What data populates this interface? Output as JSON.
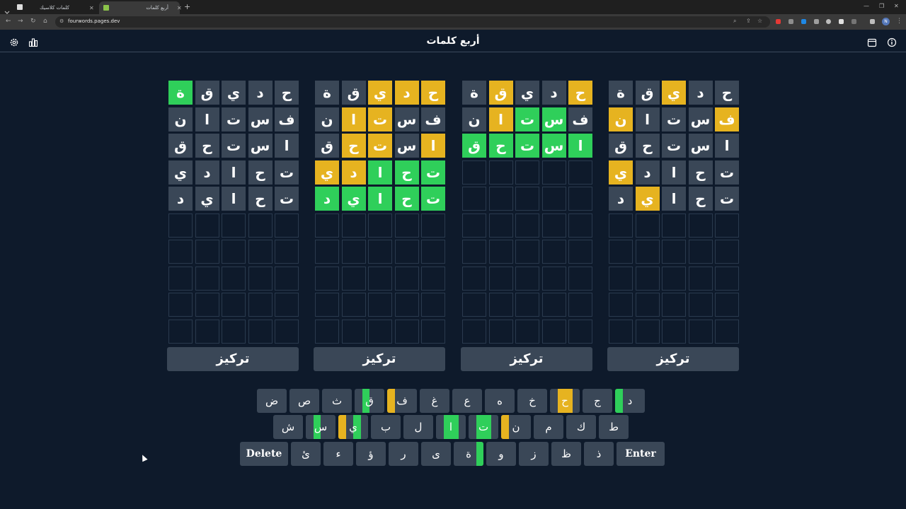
{
  "browser": {
    "tabs": [
      {
        "title": "كلمات كلاسيك",
        "active": false
      },
      {
        "title": "أربع كلمات",
        "active": true
      }
    ],
    "url": "fourwords.pages.dev",
    "profile_initial": "N"
  },
  "header": {
    "title": "أربع كلمات",
    "icons": [
      "gear-icon",
      "stats-icon",
      "calendar-icon",
      "info-icon"
    ]
  },
  "colors": {
    "background": "#0e1a2b",
    "tile_gray": "#3a4757",
    "tile_yellow": "#e6b320",
    "tile_green": "#2fcf5a",
    "empty_border": "#2a3a4e"
  },
  "boards": [
    {
      "focus_label": "تركيز",
      "rows": [
        [
          {
            "l": "ح",
            "c": "gray"
          },
          {
            "l": "د",
            "c": "gray"
          },
          {
            "l": "ي",
            "c": "gray"
          },
          {
            "l": "ق",
            "c": "gray"
          },
          {
            "l": "ة",
            "c": "green"
          }
        ],
        [
          {
            "l": "ف",
            "c": "gray"
          },
          {
            "l": "س",
            "c": "gray"
          },
          {
            "l": "ت",
            "c": "gray"
          },
          {
            "l": "ا",
            "c": "gray"
          },
          {
            "l": "ن",
            "c": "gray"
          }
        ],
        [
          {
            "l": "ا",
            "c": "gray"
          },
          {
            "l": "س",
            "c": "gray"
          },
          {
            "l": "ت",
            "c": "gray"
          },
          {
            "l": "ح",
            "c": "gray"
          },
          {
            "l": "ق",
            "c": "gray"
          }
        ],
        [
          {
            "l": "ت",
            "c": "gray"
          },
          {
            "l": "ح",
            "c": "gray"
          },
          {
            "l": "ا",
            "c": "gray"
          },
          {
            "l": "د",
            "c": "gray"
          },
          {
            "l": "ي",
            "c": "gray"
          }
        ],
        [
          {
            "l": "ت",
            "c": "gray"
          },
          {
            "l": "ح",
            "c": "gray"
          },
          {
            "l": "ا",
            "c": "gray"
          },
          {
            "l": "ي",
            "c": "gray"
          },
          {
            "l": "د",
            "c": "gray"
          }
        ]
      ]
    },
    {
      "focus_label": "تركيز",
      "rows": [
        [
          {
            "l": "ح",
            "c": "yellow"
          },
          {
            "l": "د",
            "c": "yellow"
          },
          {
            "l": "ي",
            "c": "yellow"
          },
          {
            "l": "ق",
            "c": "gray"
          },
          {
            "l": "ة",
            "c": "gray"
          }
        ],
        [
          {
            "l": "ف",
            "c": "gray"
          },
          {
            "l": "س",
            "c": "gray"
          },
          {
            "l": "ت",
            "c": "yellow"
          },
          {
            "l": "ا",
            "c": "yellow"
          },
          {
            "l": "ن",
            "c": "gray"
          }
        ],
        [
          {
            "l": "ا",
            "c": "yellow"
          },
          {
            "l": "س",
            "c": "gray"
          },
          {
            "l": "ت",
            "c": "yellow"
          },
          {
            "l": "ح",
            "c": "yellow"
          },
          {
            "l": "ق",
            "c": "gray"
          }
        ],
        [
          {
            "l": "ت",
            "c": "green"
          },
          {
            "l": "ح",
            "c": "green"
          },
          {
            "l": "ا",
            "c": "green"
          },
          {
            "l": "د",
            "c": "yellow"
          },
          {
            "l": "ي",
            "c": "yellow"
          }
        ],
        [
          {
            "l": "ت",
            "c": "green"
          },
          {
            "l": "ح",
            "c": "green"
          },
          {
            "l": "ا",
            "c": "green"
          },
          {
            "l": "ي",
            "c": "green"
          },
          {
            "l": "د",
            "c": "green"
          }
        ]
      ]
    },
    {
      "focus_label": "تركيز",
      "rows": [
        [
          {
            "l": "ح",
            "c": "yellow"
          },
          {
            "l": "د",
            "c": "gray"
          },
          {
            "l": "ي",
            "c": "gray"
          },
          {
            "l": "ق",
            "c": "yellow"
          },
          {
            "l": "ة",
            "c": "gray"
          }
        ],
        [
          {
            "l": "ف",
            "c": "gray"
          },
          {
            "l": "س",
            "c": "green"
          },
          {
            "l": "ت",
            "c": "green"
          },
          {
            "l": "ا",
            "c": "yellow"
          },
          {
            "l": "ن",
            "c": "gray"
          }
        ],
        [
          {
            "l": "ا",
            "c": "green"
          },
          {
            "l": "س",
            "c": "green"
          },
          {
            "l": "ت",
            "c": "green"
          },
          {
            "l": "ح",
            "c": "green"
          },
          {
            "l": "ق",
            "c": "green"
          }
        ]
      ]
    },
    {
      "focus_label": "تركيز",
      "rows": [
        [
          {
            "l": "ح",
            "c": "gray"
          },
          {
            "l": "د",
            "c": "gray"
          },
          {
            "l": "ي",
            "c": "yellow"
          },
          {
            "l": "ق",
            "c": "gray"
          },
          {
            "l": "ة",
            "c": "gray"
          }
        ],
        [
          {
            "l": "ف",
            "c": "yellow"
          },
          {
            "l": "س",
            "c": "gray"
          },
          {
            "l": "ت",
            "c": "gray"
          },
          {
            "l": "ا",
            "c": "gray"
          },
          {
            "l": "ن",
            "c": "yellow"
          }
        ],
        [
          {
            "l": "ا",
            "c": "gray"
          },
          {
            "l": "س",
            "c": "gray"
          },
          {
            "l": "ت",
            "c": "gray"
          },
          {
            "l": "ح",
            "c": "gray"
          },
          {
            "l": "ق",
            "c": "gray"
          }
        ],
        [
          {
            "l": "ت",
            "c": "gray"
          },
          {
            "l": "ح",
            "c": "gray"
          },
          {
            "l": "ا",
            "c": "gray"
          },
          {
            "l": "د",
            "c": "gray"
          },
          {
            "l": "ي",
            "c": "yellow"
          }
        ],
        [
          {
            "l": "ت",
            "c": "gray"
          },
          {
            "l": "ح",
            "c": "gray"
          },
          {
            "l": "ا",
            "c": "gray"
          },
          {
            "l": "ي",
            "c": "yellow"
          },
          {
            "l": "د",
            "c": "gray"
          }
        ]
      ]
    }
  ],
  "keyboard": {
    "rows": [
      [
        {
          "label": "د",
          "status": [
            "gray",
            "gray",
            "gray",
            "green"
          ]
        },
        {
          "label": "ج",
          "status": [
            "gray",
            "gray",
            "gray",
            "gray"
          ]
        },
        {
          "label": "ح",
          "status": [
            "gray",
            "yellow",
            "yellow",
            "gray"
          ]
        },
        {
          "label": "خ",
          "status": [
            "gray",
            "gray",
            "gray",
            "gray"
          ]
        },
        {
          "label": "ه",
          "status": [
            "gray",
            "gray",
            "gray",
            "gray"
          ]
        },
        {
          "label": "ع",
          "status": [
            "gray",
            "gray",
            "gray",
            "gray"
          ]
        },
        {
          "label": "غ",
          "status": [
            "gray",
            "gray",
            "gray",
            "gray"
          ]
        },
        {
          "label": "ف",
          "status": [
            "gray",
            "gray",
            "gray",
            "yellow"
          ]
        },
        {
          "label": "ق",
          "status": [
            "gray",
            "gray",
            "green",
            "gray"
          ]
        },
        {
          "label": "ث",
          "status": [
            "gray",
            "gray",
            "gray",
            "gray"
          ]
        },
        {
          "label": "ص",
          "status": [
            "gray",
            "gray",
            "gray",
            "gray"
          ]
        },
        {
          "label": "ض",
          "status": [
            "gray",
            "gray",
            "gray",
            "gray"
          ]
        }
      ],
      [
        {
          "label": "ط",
          "status": [
            "gray",
            "gray",
            "gray",
            "gray"
          ]
        },
        {
          "label": "ك",
          "status": [
            "gray",
            "gray",
            "gray",
            "gray"
          ]
        },
        {
          "label": "م",
          "status": [
            "gray",
            "gray",
            "gray",
            "gray"
          ]
        },
        {
          "label": "ن",
          "status": [
            "gray",
            "gray",
            "gray",
            "yellow"
          ]
        },
        {
          "label": "ت",
          "status": [
            "gray",
            "green",
            "green",
            "gray"
          ]
        },
        {
          "label": "ا",
          "status": [
            "gray",
            "green",
            "green",
            "gray"
          ]
        },
        {
          "label": "ل",
          "status": [
            "gray",
            "gray",
            "gray",
            "gray"
          ]
        },
        {
          "label": "ب",
          "status": [
            "gray",
            "gray",
            "gray",
            "gray"
          ]
        },
        {
          "label": "ي",
          "status": [
            "gray",
            "green",
            "gray",
            "yellow"
          ]
        },
        {
          "label": "س",
          "status": [
            "gray",
            "gray",
            "green",
            "gray"
          ]
        },
        {
          "label": "ش",
          "status": [
            "gray",
            "gray",
            "gray",
            "gray"
          ]
        }
      ],
      [
        {
          "label": "Enter",
          "wide": true
        },
        {
          "label": "ذ",
          "status": [
            "gray",
            "gray",
            "gray",
            "gray"
          ]
        },
        {
          "label": "ظ",
          "status": [
            "gray",
            "gray",
            "gray",
            "gray"
          ]
        },
        {
          "label": "ز",
          "status": [
            "gray",
            "gray",
            "gray",
            "gray"
          ]
        },
        {
          "label": "و",
          "status": [
            "gray",
            "gray",
            "gray",
            "gray"
          ]
        },
        {
          "label": "ة",
          "status": [
            "green",
            "gray",
            "gray",
            "gray"
          ]
        },
        {
          "label": "ى",
          "status": [
            "gray",
            "gray",
            "gray",
            "gray"
          ]
        },
        {
          "label": "ر",
          "status": [
            "gray",
            "gray",
            "gray",
            "gray"
          ]
        },
        {
          "label": "ؤ",
          "status": [
            "gray",
            "gray",
            "gray",
            "gray"
          ]
        },
        {
          "label": "ء",
          "status": [
            "gray",
            "gray",
            "gray",
            "gray"
          ]
        },
        {
          "label": "ئ",
          "status": [
            "gray",
            "gray",
            "gray",
            "gray"
          ]
        },
        {
          "label": "Delete",
          "wide": true
        }
      ]
    ]
  }
}
